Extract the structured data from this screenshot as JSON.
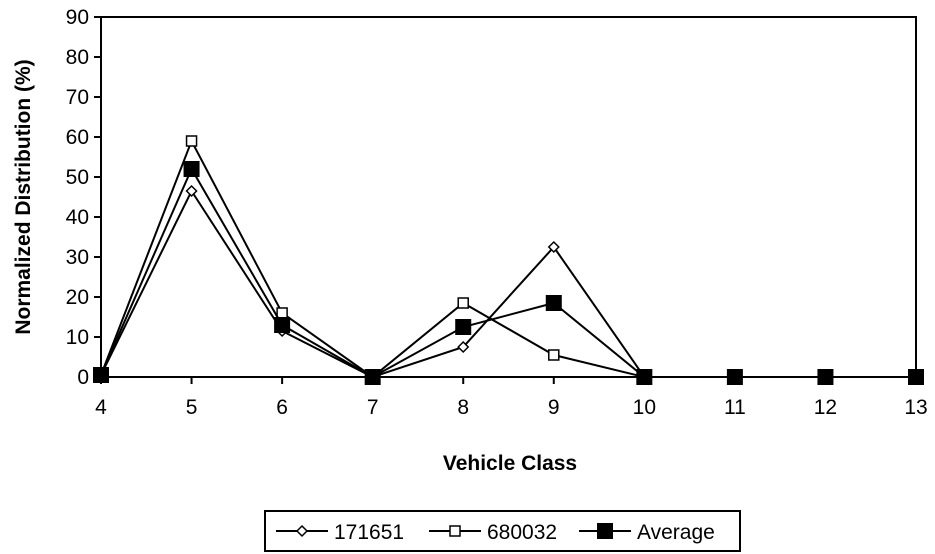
{
  "chart_data": {
    "type": "line",
    "title": "",
    "xlabel": "Vehicle Class",
    "ylabel": "Normalized Distribution (%)",
    "x": [
      4,
      5,
      6,
      7,
      8,
      9,
      10,
      11,
      12,
      13
    ],
    "xlim": [
      4,
      13
    ],
    "ylim": [
      0,
      90
    ],
    "yticks": [
      "0",
      "10",
      "20",
      "30",
      "40",
      "50",
      "60",
      "70",
      "80",
      "90"
    ],
    "xticks": [
      "4",
      "5",
      "6",
      "7",
      "8",
      "9",
      "10",
      "11",
      "12",
      "13"
    ],
    "grid": false,
    "legend_position": "bottom",
    "series": [
      {
        "name": "171651",
        "marker": "diamond-open",
        "x": [
          4,
          5,
          6,
          7,
          8,
          9,
          10
        ],
        "values": [
          0.5,
          46.5,
          11.5,
          0,
          7.5,
          32.5,
          0
        ]
      },
      {
        "name": "680032",
        "marker": "square-open",
        "x": [
          4,
          5,
          6,
          7,
          8,
          9,
          10
        ],
        "values": [
          0.5,
          59,
          16,
          0,
          18.5,
          5.5,
          0
        ]
      },
      {
        "name": "Average",
        "marker": "square-filled",
        "x": [
          4,
          5,
          6,
          7,
          8,
          9,
          10,
          11,
          12,
          13
        ],
        "values": [
          0.5,
          52,
          13,
          0,
          12.5,
          18.5,
          0,
          0,
          0,
          0
        ]
      }
    ]
  }
}
